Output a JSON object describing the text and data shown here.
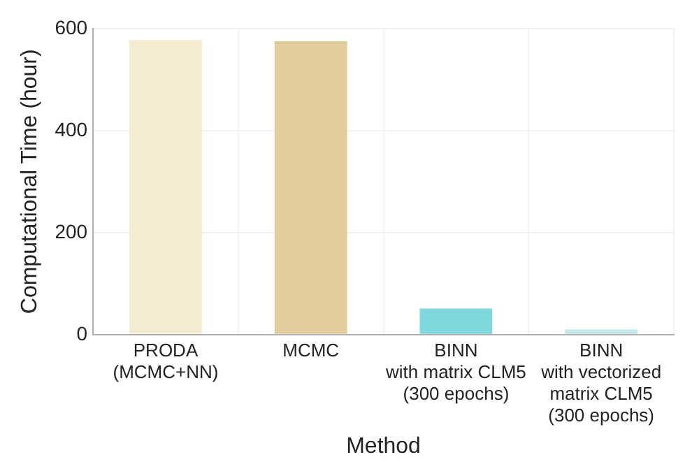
{
  "chart_data": {
    "type": "bar",
    "xlabel": "Method",
    "ylabel": "Computational Time (hour)",
    "categories": [
      "PRODA\n(MCMC+NN)",
      "MCMC",
      "BINN\nwith matrix CLM5\n(300 epochs)",
      "BINN\nwith vectorized\nmatrix CLM5\n(300 epochs)"
    ],
    "values": [
      577,
      575,
      51,
      10
    ],
    "colors": [
      "#f5ebd0",
      "#e2cc9b",
      "#7fd8dd",
      "#c4e8e8"
    ],
    "ylim": [
      0,
      600
    ],
    "yticks": [
      0,
      200,
      400,
      600
    ],
    "grid": true
  }
}
